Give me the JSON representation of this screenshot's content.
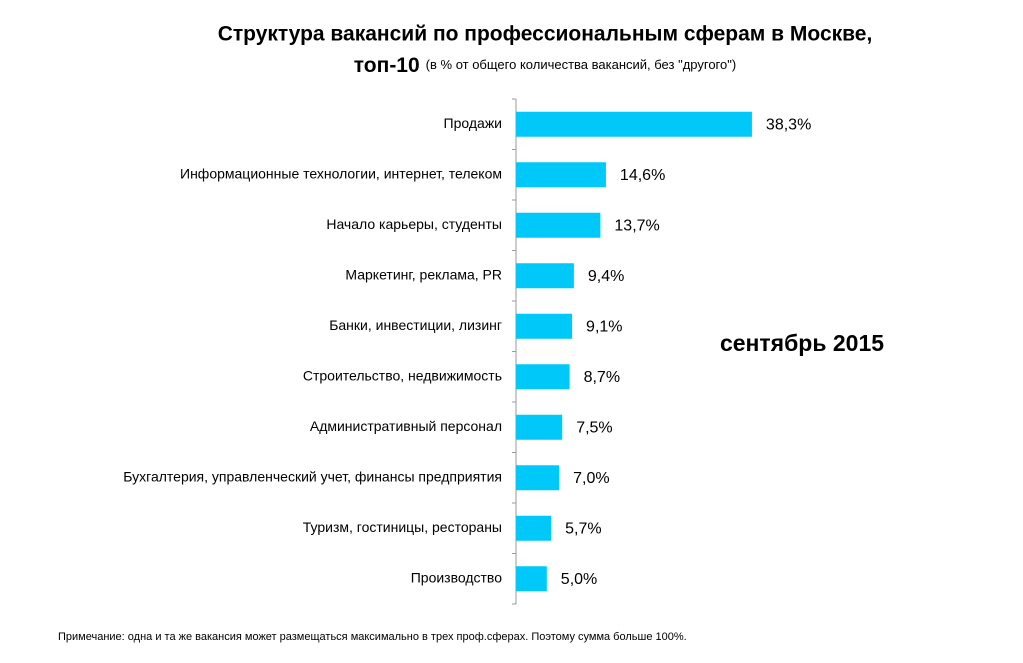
{
  "chart_data": {
    "type": "bar",
    "orientation": "horizontal",
    "title_lines": [
      "Структура вакансий по профессиональным сферам в Москве,",
      "топ-10"
    ],
    "subtitle": "(в % от общего количества вакансий, без \"другого\")",
    "annotation": "сентябрь 2015",
    "note": "Примечание: одна и та же вакансия может размещаться максимально в трех проф.сферах. Поэтому сумма больше 100%.",
    "categories": [
      "Продажи",
      "Информационные технологии, интернет, телеком",
      "Начало карьеры, студенты",
      "Маркетинг, реклама, PR",
      "Банки, инвестиции, лизинг",
      "Строительство, недвижимость",
      "Административный персонал",
      "Бухгалтерия, управленческий учет, финансы предприятия",
      "Туризм, гостиницы, рестораны",
      "Производство"
    ],
    "values": [
      38.3,
      14.6,
      13.7,
      9.4,
      9.1,
      8.7,
      7.5,
      7.0,
      5.7,
      5.0
    ],
    "value_labels": [
      "38,3%",
      "14,6%",
      "13,7%",
      "9,4%",
      "9,1%",
      "8,7%",
      "7,5%",
      "7,0%",
      "5,7%",
      "5,0%"
    ],
    "color": "#00c8f8"
  }
}
